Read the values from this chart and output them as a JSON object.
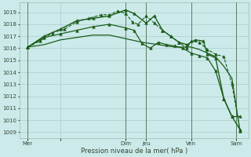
{
  "title": "",
  "xlabel": "Pression niveau de la mer( hPa )",
  "background_color": "#cdeaea",
  "grid_color": "#aacccc",
  "line_color": "#1a5c1a",
  "ylim": [
    1008.5,
    1019.8
  ],
  "yticks": [
    1009,
    1010,
    1011,
    1012,
    1013,
    1014,
    1015,
    1016,
    1017,
    1018,
    1019
  ],
  "xlim": [
    0,
    28
  ],
  "xtick_positions": [
    1,
    5,
    13,
    15.5,
    21,
    26.5
  ],
  "xtick_labels": [
    "Mer",
    "",
    "Dim",
    "Jeu",
    "Ven",
    "Sam"
  ],
  "vlines": [
    1,
    13,
    15.5,
    21,
    26.5
  ],
  "vline_color": "#446644",
  "series": [
    {
      "x": [
        1,
        3,
        5,
        7,
        9,
        11,
        13,
        15,
        17,
        19,
        21,
        22,
        23,
        24,
        25,
        26,
        27
      ],
      "y": [
        1016.1,
        1016.3,
        1016.7,
        1016.9,
        1017.1,
        1017.1,
        1016.8,
        1016.5,
        1016.3,
        1016.1,
        1016.1,
        1015.9,
        1015.6,
        1015.3,
        1014.5,
        1013.5,
        1009.0
      ],
      "linestyle": "-",
      "linewidth": 0.9,
      "marker": null,
      "markersize": 0
    },
    {
      "x": [
        1,
        2.5,
        4,
        5.5,
        7,
        8.5,
        10,
        11,
        12,
        13,
        13.8,
        14.5,
        15.5,
        16.5,
        17.5,
        18.5,
        19.5,
        20.5,
        21,
        22,
        23,
        24,
        25,
        26,
        27
      ],
      "y": [
        1016.1,
        1016.6,
        1017.3,
        1017.6,
        1018.2,
        1018.5,
        1018.8,
        1018.8,
        1019.1,
        1018.9,
        1018.2,
        1018.0,
        1018.7,
        1018.1,
        1017.5,
        1017.0,
        1016.5,
        1016.0,
        1016.6,
        1016.5,
        1015.9,
        1015.5,
        1015.3,
        1013.0,
        1009.1
      ],
      "linestyle": "--",
      "linewidth": 0.8,
      "marker": "^",
      "markersize": 2.5
    },
    {
      "x": [
        1,
        3,
        5,
        7,
        9,
        11,
        13,
        14,
        15,
        16,
        17,
        18,
        19,
        20,
        21,
        22,
        23,
        24,
        25,
        26,
        27
      ],
      "y": [
        1016.1,
        1016.9,
        1017.2,
        1017.5,
        1017.8,
        1018.0,
        1017.7,
        1017.5,
        1016.4,
        1016.0,
        1016.5,
        1016.3,
        1016.2,
        1016.0,
        1015.6,
        1015.4,
        1015.2,
        1014.1,
        1011.8,
        1010.3,
        1010.3
      ],
      "linestyle": "-",
      "linewidth": 0.9,
      "marker": "^",
      "markersize": 2.5
    },
    {
      "x": [
        1,
        3,
        5,
        7,
        9,
        11,
        13,
        14,
        15.5,
        16.5,
        17.5,
        18.5,
        19.5,
        20.5,
        21.5,
        22.5,
        23,
        24,
        25,
        26,
        27
      ],
      "y": [
        1016.1,
        1017.0,
        1017.6,
        1018.3,
        1018.5,
        1018.7,
        1019.2,
        1018.9,
        1018.1,
        1018.7,
        1017.5,
        1017.0,
        1016.5,
        1016.3,
        1016.7,
        1016.6,
        1015.5,
        1015.2,
        1011.8,
        1010.3,
        1009.2
      ],
      "linestyle": "-",
      "linewidth": 1.0,
      "marker": "^",
      "markersize": 2.5
    }
  ]
}
